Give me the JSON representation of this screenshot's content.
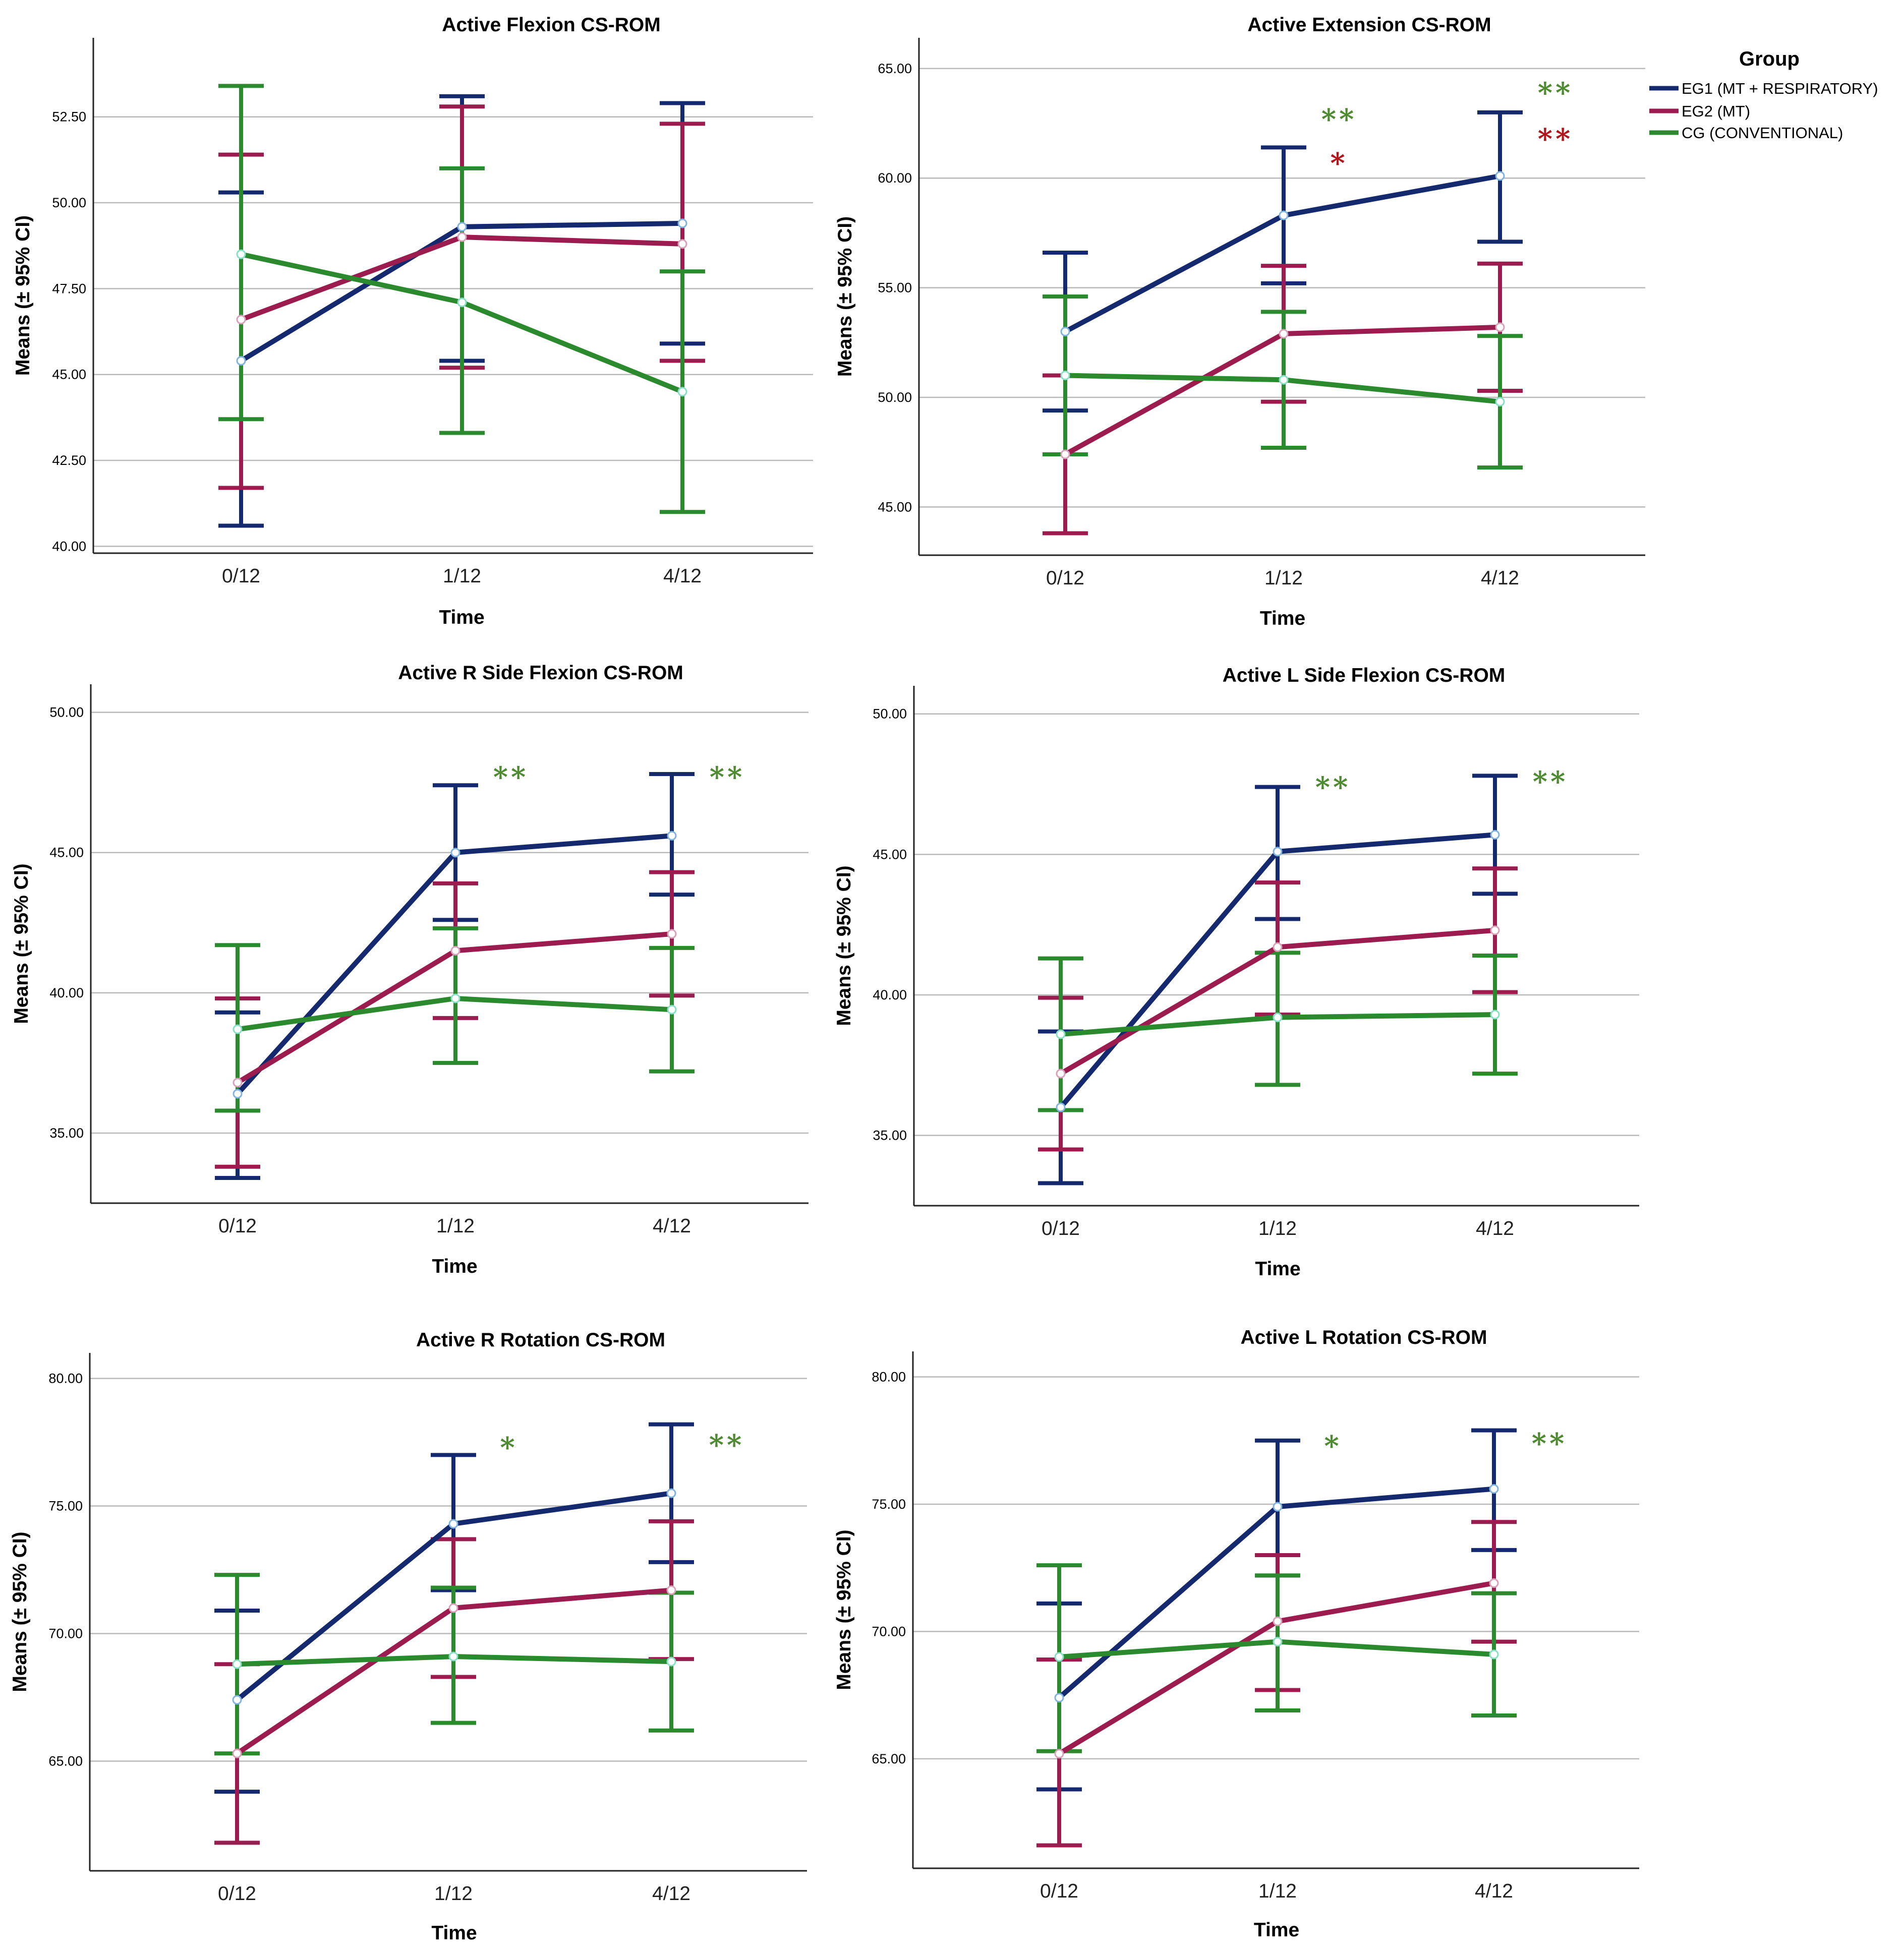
{
  "legend": {
    "title": "Group",
    "items": [
      {
        "label": "EG1 (MT + RESPIRATORY)",
        "color": "#152a6e"
      },
      {
        "label": "EG2 (MT)",
        "color": "#9c1c4f"
      },
      {
        "label": "CG (CONVENTIONAL)",
        "color": "#2a8a2d"
      }
    ]
  },
  "chart_data": [
    {
      "type": "line",
      "title": "Active Flexion CS-ROM",
      "xlabel": "Time",
      "ylabel": "Means (± 95% CI)",
      "categories": [
        "0/12",
        "1/12",
        "4/12"
      ],
      "ylim": [
        39.8,
        54.8
      ],
      "yticks": [
        "40.00",
        "42.50",
        "45.00",
        "47.50",
        "50.00",
        "52.50"
      ],
      "series": [
        {
          "name": "EG1 (MT + RESPIRATORY)",
          "values": [
            45.4,
            49.3,
            49.4
          ],
          "lower": [
            40.6,
            45.4,
            45.9
          ],
          "upper": [
            50.3,
            53.1,
            52.9
          ]
        },
        {
          "name": "EG2 (MT)",
          "values": [
            46.6,
            49.0,
            48.8
          ],
          "lower": [
            41.7,
            45.2,
            45.4
          ],
          "upper": [
            51.4,
            52.8,
            52.3
          ]
        },
        {
          "name": "CG (CONVENTIONAL)",
          "values": [
            48.5,
            47.1,
            44.5
          ],
          "lower": [
            43.7,
            43.3,
            41.0
          ],
          "upper": [
            53.4,
            51.0,
            48.0
          ]
        }
      ],
      "annotations": []
    },
    {
      "type": "line",
      "title": "Active Extension CS-ROM",
      "xlabel": "Time",
      "ylabel": "Means (± 95% CI)",
      "categories": [
        "0/12",
        "1/12",
        "4/12"
      ],
      "ylim": [
        42.8,
        66.4
      ],
      "yticks": [
        "45.00",
        "50.00",
        "55.00",
        "60.00",
        "65.00"
      ],
      "series": [
        {
          "name": "EG1 (MT + RESPIRATORY)",
          "values": [
            53.0,
            58.3,
            60.1
          ],
          "lower": [
            49.4,
            55.2,
            57.1
          ],
          "upper": [
            56.6,
            61.4,
            63.0
          ]
        },
        {
          "name": "EG2 (MT)",
          "values": [
            47.4,
            52.9,
            53.2
          ],
          "lower": [
            43.8,
            49.8,
            50.3
          ],
          "upper": [
            51.0,
            56.0,
            56.1
          ]
        },
        {
          "name": "CG (CONVENTIONAL)",
          "values": [
            51.0,
            50.8,
            49.8
          ],
          "lower": [
            47.4,
            47.7,
            46.8
          ],
          "upper": [
            54.6,
            53.9,
            52.8
          ]
        }
      ],
      "annotations": [
        {
          "category": "1/12",
          "text": "**",
          "color": "#4e8a30",
          "value": 62.7
        },
        {
          "category": "1/12",
          "text": "*",
          "color": "#b3141c",
          "value": 60.7
        },
        {
          "category": "4/12",
          "text": "**",
          "color": "#4e8a30",
          "value": 63.9
        },
        {
          "category": "4/12",
          "text": "**",
          "color": "#b3141c",
          "value": 61.8
        }
      ]
    },
    {
      "type": "line",
      "title": "Active R Side Flexion CS-ROM",
      "xlabel": "Time",
      "ylabel": "Means (± 95% CI)",
      "categories": [
        "0/12",
        "1/12",
        "4/12"
      ],
      "ylim": [
        32.5,
        51.0
      ],
      "yticks": [
        "35.00",
        "40.00",
        "45.00",
        "50.00"
      ],
      "series": [
        {
          "name": "EG1 (MT + RESPIRATORY)",
          "values": [
            36.4,
            45.0,
            45.6
          ],
          "lower": [
            33.4,
            42.6,
            43.5
          ],
          "upper": [
            39.3,
            47.4,
            47.8
          ]
        },
        {
          "name": "EG2 (MT)",
          "values": [
            36.8,
            41.5,
            42.1
          ],
          "lower": [
            33.8,
            39.1,
            39.9
          ],
          "upper": [
            39.8,
            43.9,
            44.3
          ]
        },
        {
          "name": "CG (CONVENTIONAL)",
          "values": [
            38.7,
            39.8,
            39.4
          ],
          "lower": [
            35.8,
            37.5,
            37.2
          ],
          "upper": [
            41.7,
            42.3,
            41.6
          ]
        }
      ],
      "annotations": [
        {
          "category": "1/12",
          "text": "**",
          "color": "#4e8a30",
          "value": 47.7
        },
        {
          "category": "4/12",
          "text": "**",
          "color": "#4e8a30",
          "value": 47.7
        }
      ]
    },
    {
      "type": "line",
      "title": "Active L Side Flexion CS-ROM",
      "xlabel": "Time",
      "ylabel": "Means (± 95% CI)",
      "categories": [
        "0/12",
        "1/12",
        "4/12"
      ],
      "ylim": [
        32.5,
        51.0
      ],
      "yticks": [
        "35.00",
        "40.00",
        "45.00",
        "50.00"
      ],
      "series": [
        {
          "name": "EG1 (MT + RESPIRATORY)",
          "values": [
            36.0,
            45.1,
            45.7
          ],
          "lower": [
            33.3,
            42.7,
            43.6
          ],
          "upper": [
            38.7,
            47.4,
            47.8
          ]
        },
        {
          "name": "EG2 (MT)",
          "values": [
            37.2,
            41.7,
            42.3
          ],
          "lower": [
            34.5,
            39.3,
            40.1
          ],
          "upper": [
            39.9,
            44.0,
            44.5
          ]
        },
        {
          "name": "CG (CONVENTIONAL)",
          "values": [
            38.6,
            39.2,
            39.3
          ],
          "lower": [
            35.9,
            36.8,
            37.2
          ],
          "upper": [
            41.3,
            41.5,
            41.4
          ]
        }
      ],
      "annotations": [
        {
          "category": "1/12",
          "text": "**",
          "color": "#4e8a30",
          "value": 47.4
        },
        {
          "category": "4/12",
          "text": "**",
          "color": "#4e8a30",
          "value": 47.6
        }
      ]
    },
    {
      "type": "line",
      "title": "Active R Rotation CS-ROM",
      "xlabel": "Time",
      "ylabel": "Means (± 95% CI)",
      "categories": [
        "0/12",
        "1/12",
        "4/12"
      ],
      "ylim": [
        60.7,
        81.0
      ],
      "yticks": [
        "65.00",
        "70.00",
        "75.00",
        "80.00"
      ],
      "series": [
        {
          "name": "EG1 (MT + RESPIRATORY)",
          "values": [
            67.4,
            74.3,
            75.5
          ],
          "lower": [
            63.8,
            71.7,
            72.8
          ],
          "upper": [
            70.9,
            77.0,
            78.2
          ]
        },
        {
          "name": "EG2 (MT)",
          "values": [
            65.3,
            71.0,
            71.7
          ],
          "lower": [
            61.8,
            68.3,
            69.0
          ],
          "upper": [
            68.8,
            73.7,
            74.4
          ]
        },
        {
          "name": "CG (CONVENTIONAL)",
          "values": [
            68.8,
            69.1,
            68.9
          ],
          "lower": [
            65.3,
            66.5,
            66.2
          ],
          "upper": [
            72.3,
            71.8,
            71.6
          ]
        }
      ],
      "annotations": [
        {
          "category": "1/12",
          "text": "*",
          "color": "#4e8a30",
          "value": 77.3
        },
        {
          "category": "4/12",
          "text": "**",
          "color": "#4e8a30",
          "value": 77.4
        }
      ]
    },
    {
      "type": "line",
      "title": "Active L Rotation CS-ROM",
      "xlabel": "Time",
      "ylabel": "Means (± 95% CI)",
      "categories": [
        "0/12",
        "1/12",
        "4/12"
      ],
      "ylim": [
        60.7,
        81.0
      ],
      "yticks": [
        "65.00",
        "70.00",
        "75.00",
        "80.00"
      ],
      "series": [
        {
          "name": "EG1 (MT + RESPIRATORY)",
          "values": [
            67.4,
            74.9,
            75.6
          ],
          "lower": [
            63.8,
            72.2,
            73.2
          ],
          "upper": [
            71.1,
            77.5,
            77.9
          ]
        },
        {
          "name": "EG2 (MT)",
          "values": [
            65.2,
            70.4,
            71.9
          ],
          "lower": [
            61.6,
            67.7,
            69.6
          ],
          "upper": [
            68.9,
            73.0,
            74.3
          ]
        },
        {
          "name": "CG (CONVENTIONAL)",
          "values": [
            69.0,
            69.6,
            69.1
          ],
          "lower": [
            65.3,
            66.9,
            66.7
          ],
          "upper": [
            72.6,
            72.2,
            71.5
          ]
        }
      ],
      "annotations": [
        {
          "category": "1/12",
          "text": "*",
          "color": "#4e8a30",
          "value": 77.3
        },
        {
          "category": "4/12",
          "text": "**",
          "color": "#4e8a30",
          "value": 77.4
        }
      ]
    }
  ]
}
